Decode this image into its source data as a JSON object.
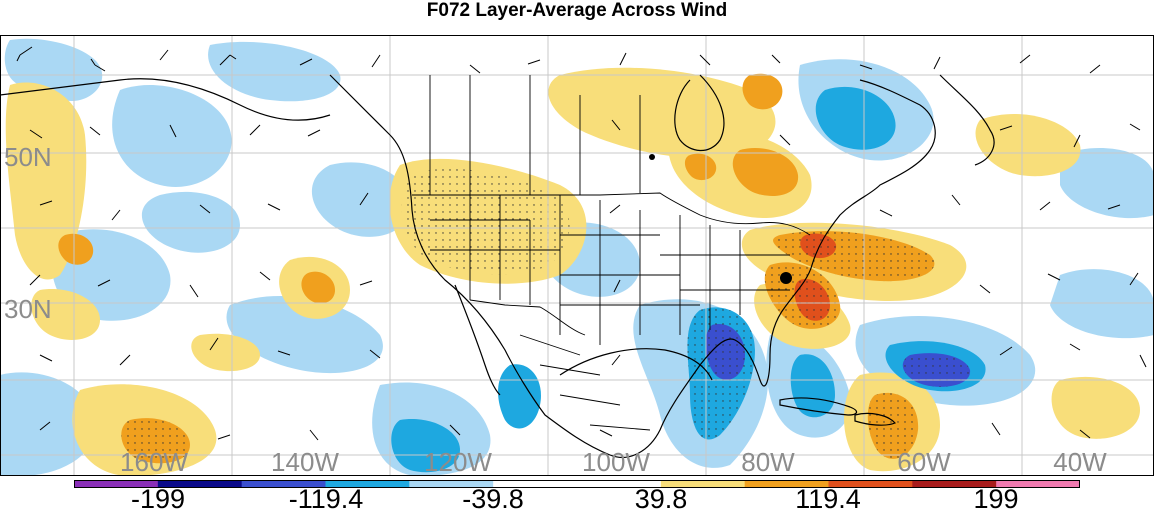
{
  "title": "F072 Layer-Average Across Wind",
  "lat_labels": [
    "50N",
    "30N"
  ],
  "lon_labels": [
    "160W",
    "140W",
    "120W",
    "100W",
    "80W",
    "60W",
    "40W"
  ],
  "colorbar": {
    "colors": [
      "#8a2fb8",
      "#0a0a8a",
      "#3a4fcf",
      "#1ea8e0",
      "#aad8f4",
      "#ffffff",
      "#ffffff",
      "#f8de7a",
      "#f0a01e",
      "#e0501c",
      "#a81c1c",
      "#f07ab0"
    ],
    "labels": [
      "-199",
      "-119.4",
      "-39.8",
      "39.8",
      "119.4",
      "199"
    ]
  },
  "colors": {
    "light_blue": "#aad8f4",
    "mid_blue": "#1ea8e0",
    "dark_blue": "#3a4fcf",
    "light_yellow": "#f8de7a",
    "orange": "#f0a01e",
    "red_orange": "#e0501c",
    "grid_label": "#8c8c8c",
    "grid_line": "#c8c8c8"
  }
}
